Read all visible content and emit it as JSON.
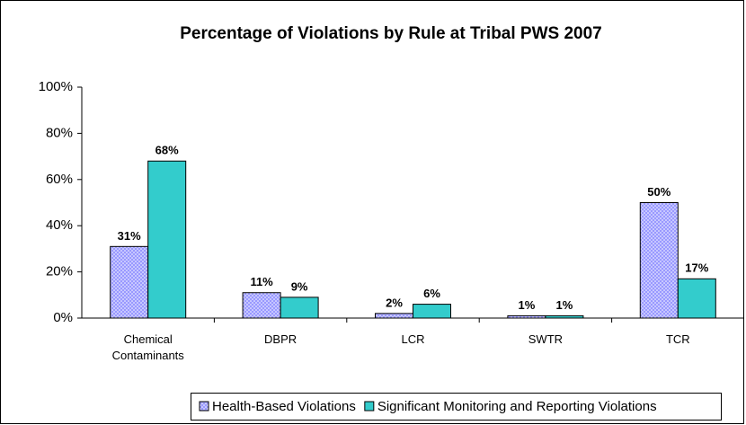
{
  "chart_data": {
    "type": "bar",
    "title": "Percentage of Violations by Rule at Tribal PWS 2007",
    "categories": [
      "Chemical Contaminants",
      "DBPR",
      "LCR",
      "SWTR",
      "TCR"
    ],
    "series": [
      {
        "name": "Health-Based Violations",
        "color": "#9999ff",
        "pattern": "dotted",
        "values": [
          31,
          11,
          2,
          1,
          50
        ],
        "value_labels": [
          "31%",
          "11%",
          "2%",
          "1%",
          "50%"
        ]
      },
      {
        "name": "Significant Monitoring and Reporting Violations",
        "color": "#33cccc",
        "values": [
          68,
          9,
          6,
          1,
          17
        ],
        "value_labels": [
          "68%",
          "9%",
          "6%",
          "1%",
          "17%"
        ]
      }
    ],
    "ylim": [
      0,
      100
    ],
    "yticks": [
      {
        "value": 0,
        "label": "0%"
      },
      {
        "value": 20,
        "label": "20%"
      },
      {
        "value": 40,
        "label": "40%"
      },
      {
        "value": 60,
        "label": "60%"
      },
      {
        "value": 80,
        "label": "80%"
      },
      {
        "value": 100,
        "label": "100%"
      }
    ],
    "grid": false,
    "legend": "bottom"
  }
}
